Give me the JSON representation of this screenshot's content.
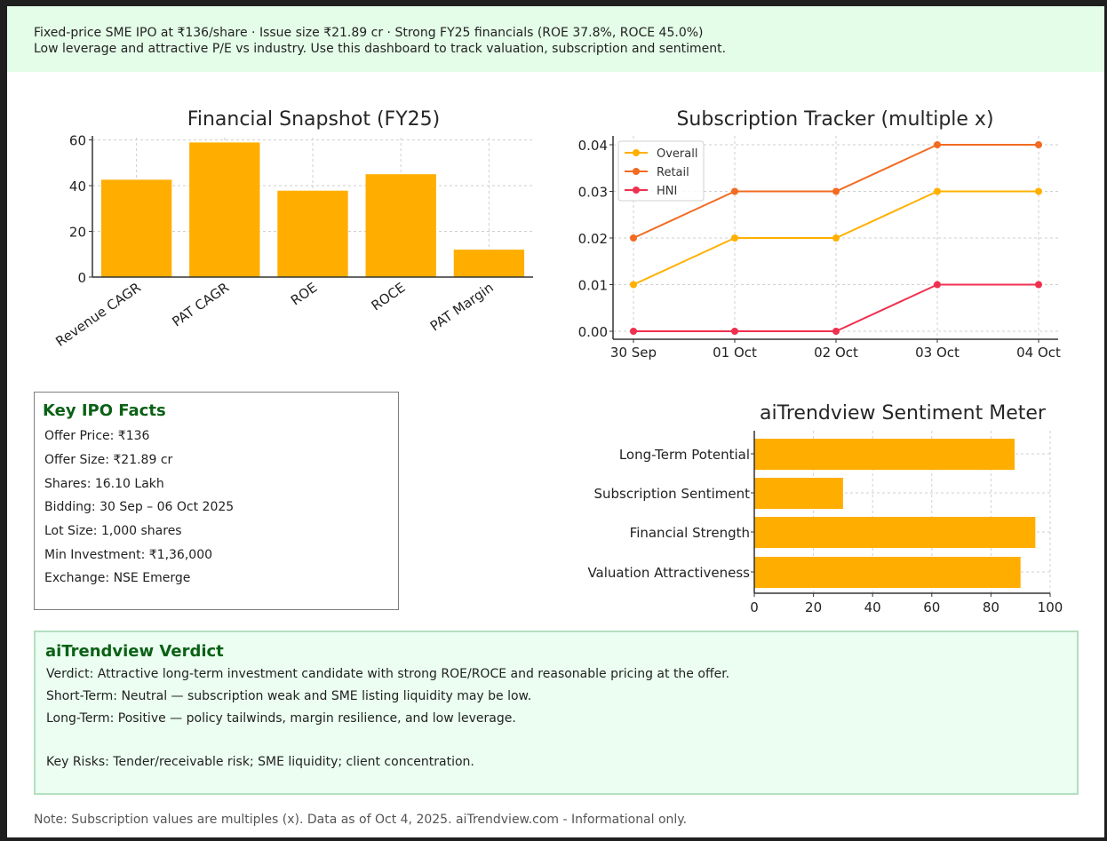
{
  "header": {
    "line1": "Fixed-price SME IPO at ₹136/share · Issue size ₹21.89 cr · Strong FY25 financials (ROE 37.8%, ROCE 45.0%)",
    "line2": "Low leverage and attractive P/E vs industry. Use this dashboard to track valuation, subscription and sentiment."
  },
  "colors": {
    "bar": "#FFAE00",
    "overall": "#FFB000",
    "retail": "#F26B21",
    "hni": "#F0304E",
    "header_bg": "#E4FDE8",
    "verdict_bg": "#EBFEF1",
    "heading_green": "#0B6115"
  },
  "chart_data": [
    {
      "type": "bar",
      "title": "Financial Snapshot (FY25)",
      "categories": [
        "Revenue CAGR",
        "PAT CAGR",
        "ROE",
        "ROCE",
        "PAT Margin"
      ],
      "values": [
        42.6,
        58.9,
        37.8,
        45.0,
        12.0
      ],
      "xlabel": "",
      "ylabel": "",
      "ylim": [
        0,
        61
      ],
      "yticks": [
        "0",
        "20",
        "40",
        "60"
      ],
      "grid": true
    },
    {
      "type": "line",
      "title": "Subscription Tracker (multiple x)",
      "x": [
        "30 Sep",
        "01 Oct",
        "02 Oct",
        "03 Oct",
        "04 Oct"
      ],
      "series": [
        {
          "name": "Overall",
          "values": [
            0.01,
            0.02,
            0.02,
            0.03,
            0.03
          ]
        },
        {
          "name": "Retail",
          "values": [
            0.02,
            0.03,
            0.03,
            0.04,
            0.04
          ]
        },
        {
          "name": "HNI",
          "values": [
            0.0,
            0.0,
            0.0,
            0.01,
            0.01
          ]
        }
      ],
      "yticks": [
        "0.00",
        "0.01",
        "0.02",
        "0.03",
        "0.04"
      ],
      "ylim": [
        -0.002,
        0.042
      ],
      "legend_position": "upper left",
      "grid": true
    },
    {
      "type": "bar",
      "orientation": "horizontal",
      "title": "aiTrendview Sentiment Meter",
      "categories": [
        "Long-Term Potential",
        "Subscription Sentiment",
        "Financial Strength",
        "Valuation Attractiveness"
      ],
      "values": [
        88,
        30,
        95,
        90
      ],
      "xlim": [
        0,
        100
      ],
      "xticks": [
        "0",
        "20",
        "40",
        "60",
        "80",
        "100"
      ],
      "grid": true
    }
  ],
  "facts": {
    "title": "Key IPO Facts",
    "rows": [
      "Offer Price: ₹136",
      "Offer Size: ₹21.89 cr",
      "Shares: 16.10 Lakh",
      "Bidding: 30 Sep – 06 Oct 2025",
      "Lot Size: 1,000 shares",
      "Min Investment: ₹1,36,000",
      "Exchange: NSE Emerge"
    ]
  },
  "verdict": {
    "title": "aiTrendview Verdict",
    "verdict": "Verdict: Attractive long-term investment candidate with strong ROE/ROCE and reasonable pricing at the offer.",
    "short_term": "Short-Term: Neutral — subscription weak and SME listing liquidity may be low.",
    "long_term": "Long-Term: Positive — policy tailwinds, margin resilience, and low leverage.",
    "key_risks": "Key Risks: Tender/receivable risk; SME liquidity; client concentration."
  },
  "note": "Note: Subscription values are multiples (x). Data as of Oct 4, 2025. aiTrendview.com - Informational only."
}
